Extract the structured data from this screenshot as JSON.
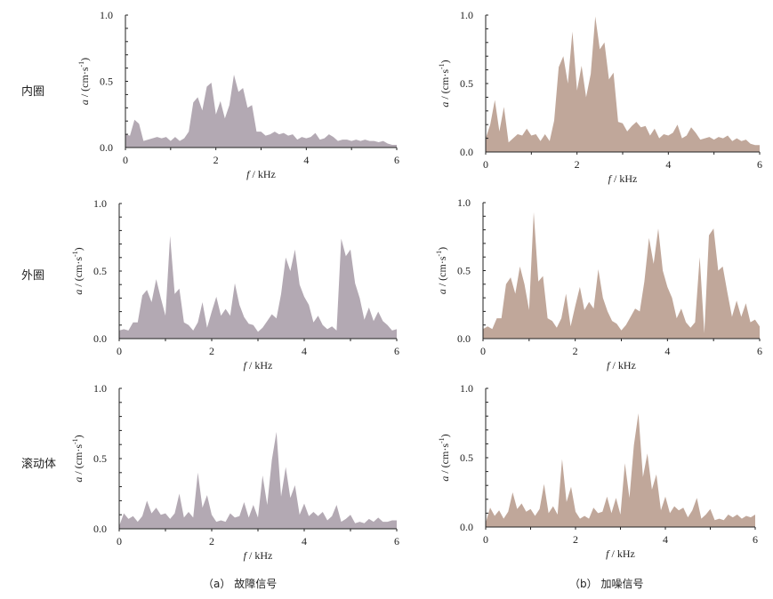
{
  "row_labels": [
    "内圈",
    "外圈",
    "滚动体"
  ],
  "captions": [
    {
      "tag": "（a）",
      "text": "故障信号"
    },
    {
      "tag": "（b）",
      "text": "加噪信号"
    }
  ],
  "colors": {
    "fault": "#b3a9b3",
    "noisy": "#c0a79a",
    "axis": "#222222"
  },
  "chart_data": [
    {
      "id": "inner-fault",
      "type": "area",
      "row": "内圈",
      "column": "故障信号",
      "color": "#b3a9b3",
      "xlabel_var": "f",
      "xlabel_unit": " / kHz",
      "ylabel_var": "a",
      "ylabel_unit": " / (cm·s",
      "ylabel_exp": "-1",
      "ylabel_close": ")",
      "xlim": [
        0,
        6
      ],
      "ylim": [
        0,
        1
      ],
      "xticks": [
        "0",
        "2",
        "4",
        "6"
      ],
      "yticks": [
        "0.0",
        "0.5",
        "1.0"
      ],
      "x_step": 0.1,
      "values": [
        0.1,
        0.09,
        0.21,
        0.18,
        0.05,
        0.06,
        0.07,
        0.08,
        0.07,
        0.08,
        0.05,
        0.08,
        0.05,
        0.07,
        0.12,
        0.34,
        0.38,
        0.28,
        0.46,
        0.49,
        0.25,
        0.35,
        0.22,
        0.32,
        0.55,
        0.42,
        0.45,
        0.3,
        0.32,
        0.12,
        0.12,
        0.09,
        0.1,
        0.12,
        0.1,
        0.11,
        0.09,
        0.1,
        0.06,
        0.08,
        0.07,
        0.08,
        0.11,
        0.06,
        0.07,
        0.1,
        0.08,
        0.05,
        0.06,
        0.06,
        0.05,
        0.06,
        0.05,
        0.06,
        0.05,
        0.05,
        0.04,
        0.05,
        0.03,
        0.02,
        0.02
      ]
    },
    {
      "id": "inner-noisy",
      "type": "area",
      "row": "内圈",
      "column": "加噪信号",
      "color": "#c0a79a",
      "xlabel_var": "f",
      "xlabel_unit": " / kHz",
      "ylabel_var": "a",
      "ylabel_unit": " / (cm·s",
      "ylabel_exp": "-1",
      "ylabel_close": ")",
      "xlim": [
        0,
        6
      ],
      "ylim": [
        0,
        1
      ],
      "xticks": [
        "0",
        "2",
        "4",
        "6"
      ],
      "yticks": [
        "0.0",
        "0.5",
        "1.0"
      ],
      "x_step": 0.1,
      "values": [
        0.1,
        0.2,
        0.38,
        0.15,
        0.33,
        0.07,
        0.1,
        0.13,
        0.12,
        0.17,
        0.12,
        0.13,
        0.08,
        0.13,
        0.08,
        0.23,
        0.62,
        0.7,
        0.5,
        0.88,
        0.45,
        0.63,
        0.4,
        0.57,
        0.99,
        0.75,
        0.8,
        0.53,
        0.58,
        0.22,
        0.21,
        0.15,
        0.19,
        0.22,
        0.18,
        0.19,
        0.12,
        0.17,
        0.1,
        0.13,
        0.12,
        0.14,
        0.2,
        0.1,
        0.12,
        0.18,
        0.14,
        0.09,
        0.1,
        0.11,
        0.09,
        0.11,
        0.1,
        0.12,
        0.08,
        0.1,
        0.08,
        0.09,
        0.06,
        0.05,
        0.05
      ]
    },
    {
      "id": "outer-fault",
      "type": "area",
      "row": "外圈",
      "column": "故障信号",
      "color": "#b3a9b3",
      "xlabel_var": "f",
      "xlabel_unit": " / kHz",
      "ylabel_var": "a",
      "ylabel_unit": " / (cm·s",
      "ylabel_exp": "-1",
      "ylabel_close": ")",
      "xlim": [
        0,
        6
      ],
      "ylim": [
        0,
        1
      ],
      "xticks": [
        "0",
        "2",
        "4",
        "6"
      ],
      "yticks": [
        "0.0",
        "0.5",
        "1.0"
      ],
      "x_step": 0.1,
      "values": [
        0.06,
        0.07,
        0.06,
        0.12,
        0.12,
        0.32,
        0.36,
        0.27,
        0.44,
        0.3,
        0.17,
        0.76,
        0.33,
        0.37,
        0.12,
        0.1,
        0.06,
        0.12,
        0.27,
        0.08,
        0.2,
        0.31,
        0.17,
        0.22,
        0.17,
        0.41,
        0.25,
        0.16,
        0.11,
        0.1,
        0.05,
        0.08,
        0.13,
        0.18,
        0.15,
        0.33,
        0.6,
        0.5,
        0.66,
        0.4,
        0.31,
        0.25,
        0.12,
        0.17,
        0.1,
        0.07,
        0.09,
        0.06,
        0.74,
        0.61,
        0.66,
        0.41,
        0.3,
        0.14,
        0.23,
        0.13,
        0.2,
        0.13,
        0.1,
        0.06,
        0.07
      ]
    },
    {
      "id": "outer-noisy",
      "type": "area",
      "row": "外圈",
      "column": "加噪信号",
      "color": "#c0a79a",
      "xlabel_var": "f",
      "xlabel_unit": " / kHz",
      "ylabel_var": "a",
      "ylabel_unit": " / (cm·s",
      "ylabel_exp": "-1",
      "ylabel_close": ")",
      "xlim": [
        0,
        6
      ],
      "ylim": [
        0,
        1
      ],
      "xticks": [
        "0",
        "2",
        "4",
        "6"
      ],
      "yticks": [
        "0.0",
        "0.5",
        "1.0"
      ],
      "x_step": 0.1,
      "values": [
        0.07,
        0.09,
        0.07,
        0.15,
        0.15,
        0.4,
        0.45,
        0.33,
        0.53,
        0.4,
        0.21,
        0.93,
        0.42,
        0.46,
        0.15,
        0.13,
        0.08,
        0.15,
        0.33,
        0.09,
        0.24,
        0.38,
        0.21,
        0.27,
        0.22,
        0.51,
        0.3,
        0.2,
        0.13,
        0.11,
        0.06,
        0.1,
        0.16,
        0.22,
        0.2,
        0.42,
        0.74,
        0.55,
        0.81,
        0.5,
        0.38,
        0.3,
        0.15,
        0.22,
        0.12,
        0.08,
        0.12,
        0.6,
        0.04,
        0.76,
        0.81,
        0.5,
        0.53,
        0.34,
        0.16,
        0.28,
        0.16,
        0.26,
        0.12,
        0.14,
        0.09
      ]
    },
    {
      "id": "rolling-fault",
      "type": "area",
      "row": "滚动体",
      "column": "故障信号",
      "color": "#b3a9b3",
      "xlabel_var": "f",
      "xlabel_unit": " / kHz",
      "ylabel_var": "a",
      "ylabel_unit": " / (cm·s",
      "ylabel_exp": "-1",
      "ylabel_close": ")",
      "xlim": [
        0,
        6
      ],
      "ylim": [
        0,
        1
      ],
      "xticks": [
        "0",
        "2",
        "4",
        "6"
      ],
      "yticks": [
        "0.0",
        "0.5",
        "1.0"
      ],
      "x_step": 0.1,
      "values": [
        0.02,
        0.11,
        0.07,
        0.09,
        0.05,
        0.09,
        0.2,
        0.11,
        0.15,
        0.1,
        0.11,
        0.07,
        0.11,
        0.25,
        0.08,
        0.12,
        0.08,
        0.4,
        0.15,
        0.24,
        0.1,
        0.05,
        0.06,
        0.05,
        0.11,
        0.08,
        0.09,
        0.19,
        0.08,
        0.17,
        0.08,
        0.38,
        0.17,
        0.49,
        0.69,
        0.23,
        0.44,
        0.22,
        0.31,
        0.1,
        0.18,
        0.09,
        0.12,
        0.09,
        0.12,
        0.06,
        0.09,
        0.17,
        0.05,
        0.07,
        0.1,
        0.04,
        0.05,
        0.04,
        0.07,
        0.05,
        0.08,
        0.05,
        0.05,
        0.06,
        0.06
      ]
    },
    {
      "id": "rolling-noisy",
      "type": "area",
      "row": "滚动体",
      "column": "加噪信号",
      "color": "#c0a79a",
      "xlabel_var": "f",
      "xlabel_unit": " / kHz",
      "ylabel_var": "a",
      "ylabel_unit": " / (cm·s",
      "ylabel_exp": "-1",
      "ylabel_close": ")",
      "xlim": [
        0,
        6
      ],
      "ylim": [
        0,
        1
      ],
      "xticks": [
        "0",
        "2",
        "4",
        "6"
      ],
      "yticks": [
        "0.0",
        "0.5",
        "1.0"
      ],
      "x_step": 0.1,
      "values": [
        0.03,
        0.14,
        0.08,
        0.12,
        0.06,
        0.11,
        0.25,
        0.13,
        0.17,
        0.11,
        0.13,
        0.08,
        0.13,
        0.31,
        0.1,
        0.15,
        0.09,
        0.49,
        0.18,
        0.29,
        0.11,
        0.06,
        0.08,
        0.06,
        0.14,
        0.1,
        0.11,
        0.22,
        0.1,
        0.21,
        0.09,
        0.46,
        0.21,
        0.59,
        0.82,
        0.36,
        0.53,
        0.27,
        0.38,
        0.12,
        0.22,
        0.1,
        0.15,
        0.12,
        0.14,
        0.07,
        0.12,
        0.21,
        0.06,
        0.09,
        0.13,
        0.05,
        0.06,
        0.05,
        0.09,
        0.07,
        0.09,
        0.06,
        0.08,
        0.07,
        0.09
      ]
    }
  ]
}
